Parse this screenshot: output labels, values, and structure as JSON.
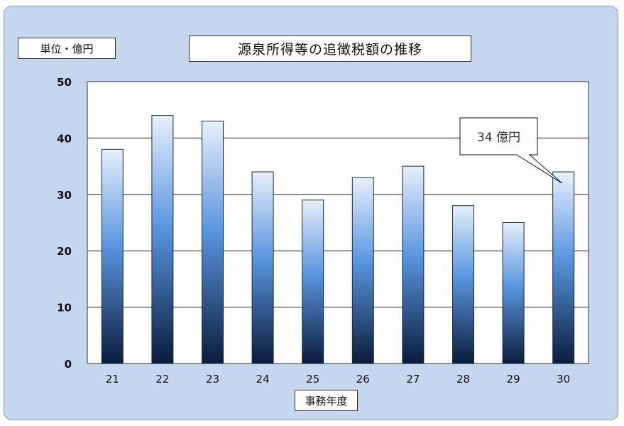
{
  "unit_label": "単位・億円",
  "chart_data": {
    "type": "bar",
    "title": "源泉所得等の追徴税額の推移",
    "xlabel": "事務年度",
    "ylabel": "",
    "categories": [
      "21",
      "22",
      "23",
      "24",
      "25",
      "26",
      "27",
      "28",
      "29",
      "30"
    ],
    "values": [
      38,
      44,
      43,
      34,
      29,
      33,
      35,
      28,
      25,
      34
    ],
    "ylim": [
      0,
      50
    ],
    "yticks": [
      "0",
      "10",
      "20",
      "30",
      "40",
      "50"
    ],
    "grid": true,
    "annotation": {
      "category": "30",
      "text": "34 億円"
    },
    "colors": {
      "bar_top": "#e8f0fb",
      "bar_mid": "#5a96e0",
      "bar_bottom": "#0a1c3c",
      "background": "#c5d6ee"
    }
  }
}
